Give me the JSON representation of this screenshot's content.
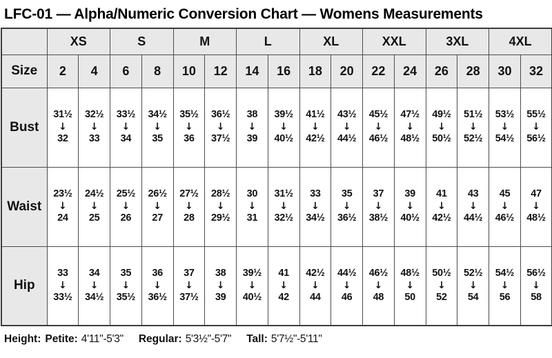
{
  "chart_data": {
    "type": "table",
    "title": "LFC-01 — Alpha/Numeric Conversion Chart — Womens Measurements",
    "corner_label": "",
    "size_row_label": "Size",
    "alpha_sizes": [
      "XS",
      "S",
      "M",
      "L",
      "XL",
      "XXL",
      "3XL",
      "4XL"
    ],
    "numeric_sizes": [
      "2",
      "4",
      "6",
      "8",
      "10",
      "12",
      "14",
      "16",
      "18",
      "20",
      "22",
      "24",
      "26",
      "28",
      "30",
      "32"
    ],
    "arrow_icon": "↓",
    "rows": [
      {
        "label": "Bust",
        "from_to": [
          [
            "31½",
            "32"
          ],
          [
            "32½",
            "33"
          ],
          [
            "33½",
            "34"
          ],
          [
            "34½",
            "35"
          ],
          [
            "35½",
            "36"
          ],
          [
            "36½",
            "37½"
          ],
          [
            "38",
            "39"
          ],
          [
            "39½",
            "40½"
          ],
          [
            "41½",
            "42½"
          ],
          [
            "43½",
            "44½"
          ],
          [
            "45½",
            "46½"
          ],
          [
            "47½",
            "48½"
          ],
          [
            "49½",
            "50½"
          ],
          [
            "51½",
            "52½"
          ],
          [
            "53½",
            "54½"
          ],
          [
            "55½",
            "56½"
          ]
        ]
      },
      {
        "label": "Waist",
        "from_to": [
          [
            "23½",
            "24"
          ],
          [
            "24½",
            "25"
          ],
          [
            "25½",
            "26"
          ],
          [
            "26½",
            "27"
          ],
          [
            "27½",
            "28"
          ],
          [
            "28½",
            "29½"
          ],
          [
            "30",
            "31"
          ],
          [
            "31½",
            "32½"
          ],
          [
            "33",
            "34½"
          ],
          [
            "35",
            "36½"
          ],
          [
            "37",
            "38½"
          ],
          [
            "39",
            "40½"
          ],
          [
            "41",
            "42½"
          ],
          [
            "43",
            "44½"
          ],
          [
            "45",
            "46½"
          ],
          [
            "47",
            "48½"
          ]
        ]
      },
      {
        "label": "Hip",
        "from_to": [
          [
            "33",
            "33½"
          ],
          [
            "34",
            "34½"
          ],
          [
            "35",
            "35½"
          ],
          [
            "36",
            "36½"
          ],
          [
            "37",
            "37½"
          ],
          [
            "38",
            "39"
          ],
          [
            "39½",
            "40½"
          ],
          [
            "41",
            "42"
          ],
          [
            "42½",
            "44"
          ],
          [
            "44½",
            "46"
          ],
          [
            "46½",
            "48"
          ],
          [
            "48½",
            "50"
          ],
          [
            "50½",
            "52"
          ],
          [
            "52½",
            "54"
          ],
          [
            "54½",
            "56"
          ],
          [
            "56½",
            "58"
          ]
        ]
      }
    ],
    "height_note": {
      "label": "Height:",
      "entries": [
        {
          "label": "Petite:",
          "value": "4'11\"-5'3\""
        },
        {
          "label": "Regular:",
          "value": "5'3½\"-5'7\""
        },
        {
          "label": "Tall:",
          "value": "5'7½\"-5'11\""
        }
      ]
    },
    "colors": {
      "header_bg": "#e8e8e8",
      "border": "#4b4b4b",
      "text": "#111111"
    }
  }
}
